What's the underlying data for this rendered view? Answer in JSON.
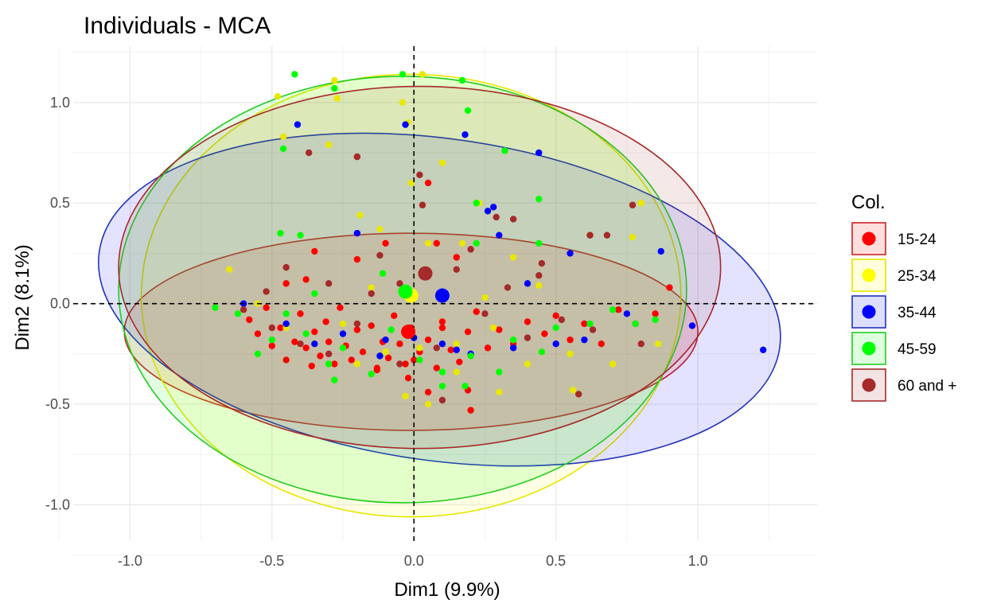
{
  "chart_data": {
    "type": "scatter",
    "title": "Individuals - MCA",
    "xlabel": "Dim1 (9.9%)",
    "ylabel": "Dim2 (8.1%)",
    "xlim": [
      -1.2,
      1.42
    ],
    "ylim": [
      -1.18,
      1.28
    ],
    "x_ticks": [
      -1.0,
      -0.5,
      0.0,
      0.5,
      1.0
    ],
    "x_tick_labels": [
      "-1.0",
      "-0.5",
      "0.0",
      "0.5",
      "1.0"
    ],
    "y_ticks": [
      -1.0,
      -0.5,
      0.0,
      0.5,
      1.0
    ],
    "y_tick_labels": [
      "-1.0",
      "-0.5",
      "0.0",
      "0.5",
      "1.0"
    ],
    "grid": true,
    "reference_lines": {
      "x": 0,
      "y": 0,
      "style": "dashed"
    },
    "legend": {
      "title": "Col.",
      "position": "right"
    },
    "series": [
      {
        "name": "15-24",
        "color": "#ff0000",
        "stroke": "#cc2222",
        "centroid": [
          -0.02,
          -0.14
        ],
        "ellipse": {
          "cx": -0.01,
          "cy": -0.14,
          "rx": 1.01,
          "ry": 0.49,
          "angle": 0
        },
        "points": [
          [
            -0.58,
            -0.08
          ],
          [
            -0.55,
            -0.15
          ],
          [
            -0.52,
            -0.02
          ],
          [
            -0.5,
            -0.21
          ],
          [
            -0.47,
            -0.12
          ],
          [
            -0.45,
            -0.28
          ],
          [
            -0.42,
            -0.19
          ],
          [
            -0.4,
            -0.05
          ],
          [
            -0.38,
            -0.22
          ],
          [
            -0.36,
            -0.31
          ],
          [
            -0.35,
            -0.14
          ],
          [
            -0.33,
            -0.26
          ],
          [
            -0.31,
            -0.09
          ],
          [
            -0.3,
            -0.19
          ],
          [
            -0.28,
            -0.3
          ],
          [
            -0.26,
            -0.02
          ],
          [
            -0.24,
            -0.21
          ],
          [
            -0.22,
            -0.28
          ],
          [
            -0.2,
            -0.13
          ],
          [
            -0.18,
            -0.24
          ],
          [
            -0.15,
            -0.11
          ],
          [
            -0.13,
            -0.33
          ],
          [
            -0.11,
            -0.19
          ],
          [
            -0.09,
            -0.27
          ],
          [
            -0.07,
            -0.06
          ],
          [
            -0.05,
            -0.2
          ],
          [
            -0.03,
            -0.3
          ],
          [
            -0.01,
            -0.12
          ],
          [
            0.02,
            -0.24
          ],
          [
            0.05,
            -0.18
          ],
          [
            0.08,
            -0.32
          ],
          [
            0.1,
            -0.09
          ],
          [
            0.13,
            -0.23
          ],
          [
            0.16,
            -0.29
          ],
          [
            0.19,
            -0.14
          ],
          [
            0.22,
            -0.04
          ],
          [
            0.26,
            -0.22
          ],
          [
            0.3,
            -0.13
          ],
          [
            0.35,
            -0.2
          ],
          [
            0.4,
            -0.09
          ],
          [
            0.46,
            -0.15
          ],
          [
            0.5,
            -0.06
          ],
          [
            0.55,
            -0.18
          ],
          [
            0.6,
            -0.1
          ],
          [
            0.66,
            -0.2
          ],
          [
            0.72,
            -0.03
          ],
          [
            0.78,
            -0.1
          ],
          [
            0.85,
            -0.05
          ],
          [
            0.9,
            0.08
          ],
          [
            -0.35,
            0.26
          ],
          [
            -0.2,
            0.22
          ],
          [
            -0.1,
            0.3
          ],
          [
            0.05,
            0.6
          ],
          [
            0.08,
            0.3
          ],
          [
            0.15,
            0.23
          ],
          [
            -0.2,
            0.73
          ],
          [
            0.62,
            0.34
          ],
          [
            -0.02,
            -0.37
          ],
          [
            0.05,
            -0.44
          ],
          [
            0.19,
            -0.43
          ],
          [
            0.2,
            -0.53
          ],
          [
            -0.13,
            -0.32
          ],
          [
            0.0,
            -0.28
          ],
          [
            0.1,
            -0.12
          ],
          [
            -0.45,
            0.1
          ],
          [
            -0.38,
            0.12
          ]
        ]
      },
      {
        "name": "25-34",
        "color": "#ffff00",
        "stroke": "#e6e600",
        "centroid": [
          -0.01,
          0.04
        ],
        "ellipse": {
          "cx": -0.01,
          "cy": 0.04,
          "rx": 0.95,
          "ry": 1.1,
          "angle": 0
        },
        "points": [
          [
            -0.48,
            1.03
          ],
          [
            -0.46,
            0.83
          ],
          [
            -0.3,
            0.79
          ],
          [
            -0.28,
            1.11
          ],
          [
            -0.27,
            1.02
          ],
          [
            -0.04,
            1.0
          ],
          [
            0.03,
            1.14
          ],
          [
            -0.02,
            0.9
          ],
          [
            0.1,
            0.7
          ],
          [
            0.23,
            0.5
          ],
          [
            -0.19,
            0.44
          ],
          [
            -0.12,
            0.37
          ],
          [
            -0.01,
            0.6
          ],
          [
            0.05,
            0.3
          ],
          [
            0.17,
            0.3
          ],
          [
            0.35,
            0.23
          ],
          [
            0.44,
            0.09
          ],
          [
            0.77,
            0.33
          ],
          [
            0.8,
            0.5
          ],
          [
            -0.65,
            0.17
          ],
          [
            -0.55,
            0.0
          ],
          [
            -0.45,
            -0.12
          ],
          [
            -0.35,
            -0.2
          ],
          [
            -0.2,
            -0.3
          ],
          [
            -0.1,
            -0.24
          ],
          [
            0.02,
            -0.22
          ],
          [
            0.15,
            -0.34
          ],
          [
            0.28,
            -0.12
          ],
          [
            0.4,
            -0.3
          ],
          [
            0.55,
            -0.25
          ],
          [
            0.7,
            -0.3
          ],
          [
            0.86,
            -0.2
          ],
          [
            -0.03,
            -0.46
          ],
          [
            0.05,
            -0.5
          ],
          [
            0.3,
            -0.44
          ],
          [
            0.56,
            -0.43
          ],
          [
            0.15,
            -0.2
          ],
          [
            -0.25,
            -0.1
          ],
          [
            0.25,
            0.03
          ],
          [
            -0.15,
            0.08
          ]
        ]
      },
      {
        "name": "35-44",
        "color": "#0000ff",
        "stroke": "#2233bb",
        "centroid": [
          0.1,
          0.04
        ],
        "ellipse": {
          "cx": 0.09,
          "cy": 0.02,
          "rx": 1.21,
          "ry": 0.8,
          "angle": -8
        },
        "points": [
          [
            -0.41,
            0.89
          ],
          [
            -0.03,
            0.89
          ],
          [
            0.18,
            0.84
          ],
          [
            0.44,
            0.75
          ],
          [
            0.28,
            0.48
          ],
          [
            0.4,
            0.1
          ],
          [
            0.26,
            0.46
          ],
          [
            0.3,
            0.34
          ],
          [
            0.55,
            0.25
          ],
          [
            0.87,
            0.26
          ],
          [
            0.98,
            -0.11
          ],
          [
            1.23,
            -0.23
          ],
          [
            -0.6,
            0.0
          ],
          [
            -0.45,
            -0.1
          ],
          [
            -0.35,
            -0.2
          ],
          [
            -0.25,
            -0.15
          ],
          [
            -0.2,
            0.35
          ],
          [
            -0.1,
            -0.18
          ],
          [
            0.0,
            -0.17
          ],
          [
            0.1,
            -0.2
          ],
          [
            0.2,
            -0.25
          ],
          [
            0.35,
            -0.22
          ],
          [
            0.5,
            -0.2
          ],
          [
            0.6,
            -0.18
          ],
          [
            0.75,
            -0.05
          ],
          [
            0.15,
            -0.23
          ],
          [
            -0.12,
            -0.26
          ]
        ]
      },
      {
        "name": "45-59",
        "color": "#00ff00",
        "stroke": "#22cc22",
        "centroid": [
          -0.03,
          0.06
        ],
        "ellipse": {
          "cx": -0.04,
          "cy": 0.07,
          "rx": 1.0,
          "ry": 1.06,
          "angle": 0
        },
        "points": [
          [
            -0.42,
            1.14
          ],
          [
            -0.28,
            1.07
          ],
          [
            -0.04,
            1.14
          ],
          [
            0.17,
            1.11
          ],
          [
            0.19,
            0.96
          ],
          [
            -0.46,
            0.77
          ],
          [
            0.32,
            0.76
          ],
          [
            0.44,
            0.52
          ],
          [
            0.22,
            0.5
          ],
          [
            -0.47,
            0.35
          ],
          [
            -0.4,
            0.34
          ],
          [
            0.44,
            0.3
          ],
          [
            -0.11,
            0.15
          ],
          [
            0.22,
            0.3
          ],
          [
            -0.7,
            -0.02
          ],
          [
            -0.62,
            -0.05
          ],
          [
            -0.55,
            -0.25
          ],
          [
            -0.5,
            -0.18
          ],
          [
            -0.45,
            -0.05
          ],
          [
            -0.38,
            -0.15
          ],
          [
            -0.35,
            0.05
          ],
          [
            -0.3,
            -0.3
          ],
          [
            -0.25,
            -0.22
          ],
          [
            -0.15,
            -0.35
          ],
          [
            -0.08,
            -0.13
          ],
          [
            0.02,
            -0.28
          ],
          [
            0.1,
            -0.34
          ],
          [
            0.2,
            -0.26
          ],
          [
            0.3,
            -0.34
          ],
          [
            0.45,
            -0.24
          ],
          [
            0.5,
            -0.12
          ],
          [
            0.62,
            -0.1
          ],
          [
            0.7,
            -0.03
          ],
          [
            0.78,
            -0.1
          ],
          [
            0.85,
            -0.08
          ],
          [
            0.1,
            -0.41
          ],
          [
            -0.28,
            -0.38
          ],
          [
            0.18,
            -0.41
          ],
          [
            0.35,
            -0.18
          ]
        ]
      },
      {
        "name": "60 and +",
        "color": "#a52a2a",
        "stroke": "#a52a2a",
        "centroid": [
          0.04,
          0.15
        ],
        "ellipse": {
          "cx": 0.02,
          "cy": 0.18,
          "rx": 1.06,
          "ry": 0.9,
          "angle": 0
        },
        "points": [
          [
            -0.37,
            0.75
          ],
          [
            -0.2,
            0.73
          ],
          [
            0.02,
            0.64
          ],
          [
            0.03,
            0.49
          ],
          [
            0.29,
            0.43
          ],
          [
            0.45,
            0.2
          ],
          [
            0.62,
            0.34
          ],
          [
            0.77,
            0.49
          ],
          [
            0.68,
            0.34
          ],
          [
            0.35,
            0.42
          ],
          [
            0.2,
            0.27
          ],
          [
            -0.12,
            0.24
          ],
          [
            -0.52,
            0.06
          ],
          [
            -0.45,
            0.18
          ],
          [
            -0.3,
            0.1
          ],
          [
            -0.15,
            0.05
          ],
          [
            -0.05,
            0.1
          ],
          [
            -0.6,
            -0.03
          ],
          [
            -0.5,
            -0.12
          ],
          [
            -0.4,
            -0.2
          ],
          [
            -0.3,
            -0.25
          ],
          [
            -0.2,
            -0.1
          ],
          [
            -0.05,
            -0.3
          ],
          [
            0.08,
            -0.22
          ],
          [
            0.25,
            -0.05
          ],
          [
            0.4,
            -0.17
          ],
          [
            0.52,
            -0.08
          ],
          [
            0.63,
            -0.13
          ],
          [
            0.8,
            -0.2
          ],
          [
            0.58,
            -0.45
          ],
          [
            0.1,
            -0.48
          ],
          [
            0.33,
            0.08
          ],
          [
            0.15,
            0.17
          ],
          [
            0.44,
            0.14
          ]
        ]
      }
    ]
  }
}
